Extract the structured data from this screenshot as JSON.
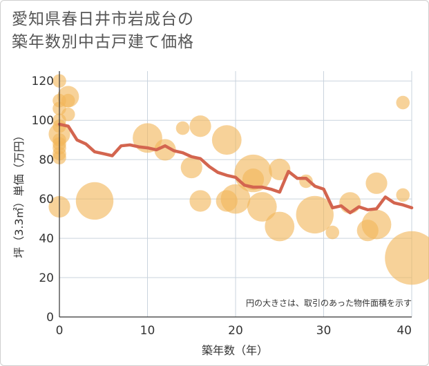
{
  "chart_data": {
    "type": "scatter",
    "title_line1": "愛知県春日井市岩成台の",
    "title_line2": "築年数別中古戸建て価格",
    "xlabel": "築年数（年）",
    "ylabel": "坪（3.3㎡）単価（万円）",
    "xlim": [
      0,
      40
    ],
    "ylim": [
      0,
      125
    ],
    "xticks": [
      "0",
      "10",
      "20",
      "30",
      "40"
    ],
    "yticks": [
      "0",
      "20",
      "40",
      "60",
      "80",
      "100",
      "120"
    ],
    "note": "円の大きさは、取引のあった物件面積を示す",
    "bubble_color": "#f2b75a",
    "line_color": "#d3654f",
    "bubbles": [
      {
        "x": 0,
        "y": 120,
        "s": 1
      },
      {
        "x": 0,
        "y": 110,
        "s": 1
      },
      {
        "x": 0,
        "y": 106,
        "s": 1
      },
      {
        "x": 0,
        "y": 100,
        "s": 1
      },
      {
        "x": 0,
        "y": 97,
        "s": 1
      },
      {
        "x": 0,
        "y": 93,
        "s": 2
      },
      {
        "x": 0,
        "y": 90,
        "s": 1
      },
      {
        "x": 0,
        "y": 88,
        "s": 1
      },
      {
        "x": 0,
        "y": 86,
        "s": 1
      },
      {
        "x": 0,
        "y": 83,
        "s": 1
      },
      {
        "x": 0,
        "y": 81,
        "s": 1
      },
      {
        "x": 0,
        "y": 56,
        "s": 2
      },
      {
        "x": 1,
        "y": 112,
        "s": 2
      },
      {
        "x": 1,
        "y": 110,
        "s": 1
      },
      {
        "x": 1,
        "y": 103,
        "s": 1
      },
      {
        "x": 4,
        "y": 59,
        "s": 4
      },
      {
        "x": 10,
        "y": 91,
        "s": 3
      },
      {
        "x": 12,
        "y": 85,
        "s": 2
      },
      {
        "x": 14,
        "y": 96,
        "s": 1
      },
      {
        "x": 15,
        "y": 76,
        "s": 2
      },
      {
        "x": 16,
        "y": 97,
        "s": 2
      },
      {
        "x": 16,
        "y": 59,
        "s": 2
      },
      {
        "x": 19,
        "y": 90,
        "s": 3
      },
      {
        "x": 19,
        "y": 59,
        "s": 2
      },
      {
        "x": 20,
        "y": 60,
        "s": 3
      },
      {
        "x": 22,
        "y": 73,
        "s": 4
      },
      {
        "x": 22,
        "y": 70,
        "s": 2
      },
      {
        "x": 23,
        "y": 56,
        "s": 3
      },
      {
        "x": 25,
        "y": 75,
        "s": 2
      },
      {
        "x": 25,
        "y": 46,
        "s": 3
      },
      {
        "x": 28,
        "y": 69,
        "s": 1
      },
      {
        "x": 29,
        "y": 52,
        "s": 4
      },
      {
        "x": 31,
        "y": 43,
        "s": 1
      },
      {
        "x": 33,
        "y": 58,
        "s": 2
      },
      {
        "x": 35,
        "y": 44,
        "s": 2
      },
      {
        "x": 36,
        "y": 68,
        "s": 2
      },
      {
        "x": 36,
        "y": 47,
        "s": 3
      },
      {
        "x": 39,
        "y": 109,
        "s": 1
      },
      {
        "x": 39,
        "y": 62,
        "s": 1
      },
      {
        "x": 40,
        "y": 30,
        "s": 6
      }
    ],
    "trend": {
      "x": [
        0,
        1,
        2,
        3,
        4,
        5,
        6,
        7,
        8,
        9,
        10,
        11,
        12,
        13,
        14,
        15,
        16,
        17,
        18,
        19,
        20,
        21,
        22,
        23,
        24,
        25,
        26,
        27,
        28,
        29,
        30,
        31,
        32,
        33,
        34,
        35,
        36,
        37,
        38,
        39,
        40
      ],
      "y": [
        98,
        97,
        90,
        88,
        84,
        83,
        82,
        87,
        87.5,
        86.5,
        86,
        85,
        87,
        84.5,
        83.5,
        81.5,
        80.5,
        76.5,
        73.5,
        72,
        71,
        67,
        66,
        66,
        65,
        63.5,
        74,
        70.5,
        70.5,
        66.5,
        65,
        55.5,
        56.5,
        53,
        56,
        54.5,
        55,
        61,
        58,
        57,
        55.5
      ]
    }
  }
}
